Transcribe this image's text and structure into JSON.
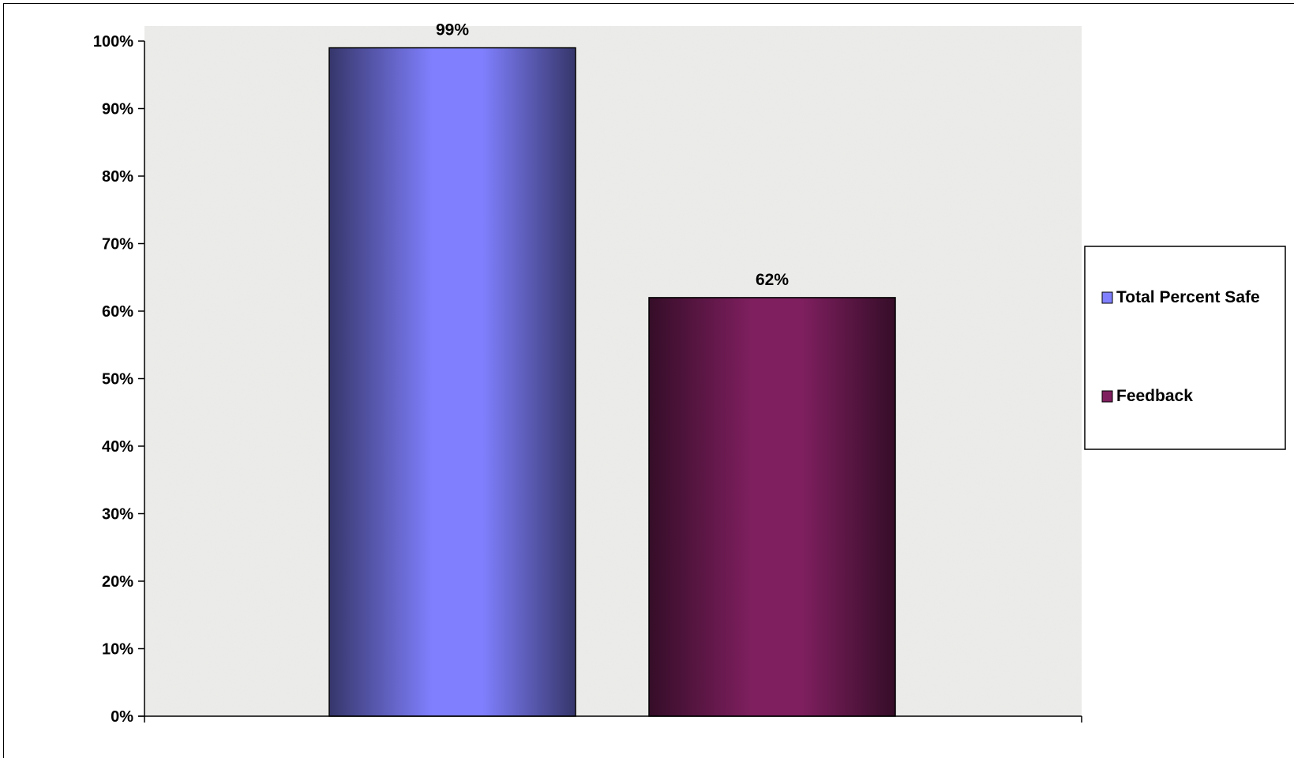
{
  "chart_data": {
    "type": "bar",
    "categories": [
      ""
    ],
    "series": [
      {
        "name": "Total Percent Safe",
        "values": [
          0.99
        ],
        "data_label": "99%",
        "color": "#8080ff"
      },
      {
        "name": "Feedback",
        "values": [
          0.62
        ],
        "data_label": "62%",
        "color": "#7f1f5f"
      }
    ],
    "title": "",
    "xlabel": "",
    "ylabel": "",
    "ylim": [
      0,
      1
    ],
    "yticks": [
      {
        "value": 0.0,
        "label": "0%"
      },
      {
        "value": 0.1,
        "label": "10%"
      },
      {
        "value": 0.2,
        "label": "20%"
      },
      {
        "value": 0.3,
        "label": "30%"
      },
      {
        "value": 0.4,
        "label": "40%"
      },
      {
        "value": 0.5,
        "label": "50%"
      },
      {
        "value": 0.6,
        "label": "60%"
      },
      {
        "value": 0.7,
        "label": "70%"
      },
      {
        "value": 0.8,
        "label": "80%"
      },
      {
        "value": 0.9,
        "label": "90%"
      },
      {
        "value": 1.0,
        "label": "100%"
      }
    ],
    "grid": false,
    "legend": "right",
    "background": "granite texture"
  }
}
